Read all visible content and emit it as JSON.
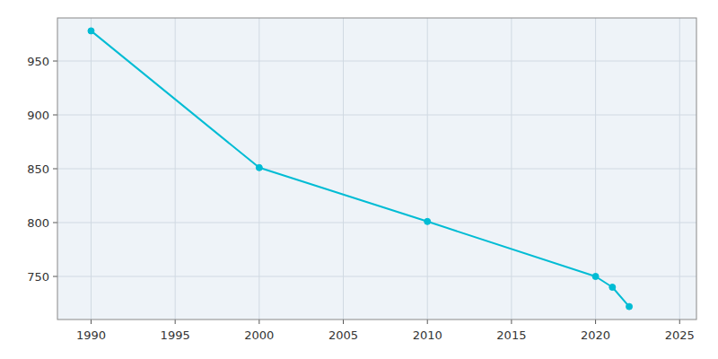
{
  "chart_data": {
    "type": "line",
    "x": [
      1990,
      2000,
      2010,
      2020,
      2021,
      2022
    ],
    "values": [
      978,
      851,
      801,
      750,
      740,
      722
    ],
    "color": "#00bcd4",
    "marker": "circle",
    "xlim": [
      1988,
      2026
    ],
    "ylim": [
      710,
      990
    ],
    "xticks": [
      1990,
      1995,
      2000,
      2005,
      2010,
      2015,
      2020,
      2025
    ],
    "yticks": [
      750,
      800,
      850,
      900,
      950
    ],
    "grid": true
  }
}
